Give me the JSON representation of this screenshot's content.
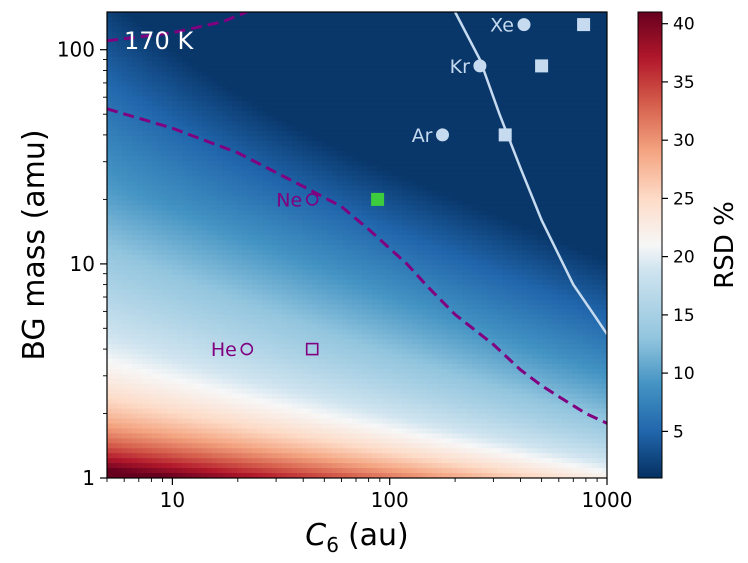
{
  "chart_data": {
    "type": "heatmap",
    "title": "",
    "annotation_text": "170 K",
    "xlabel_base": "C",
    "xlabel_sub": "6",
    "xlabel_unit": "(au)",
    "ylabel": "BG mass (amu)",
    "xscale": "log",
    "yscale": "log",
    "xlim": [
      5,
      1000
    ],
    "ylim": [
      1,
      150
    ],
    "xticks": [
      {
        "value": 10,
        "label": "10"
      },
      {
        "value": 100,
        "label": "100"
      },
      {
        "value": 1000,
        "label": "1000"
      }
    ],
    "yticks": [
      {
        "value": 1,
        "label": "1"
      },
      {
        "value": 10,
        "label": "10"
      },
      {
        "value": 100,
        "label": "100"
      }
    ],
    "colorbar": {
      "label": "RSD %",
      "range": [
        1,
        41
      ],
      "ticks": [
        {
          "value": 5,
          "label": "5"
        },
        {
          "value": 10,
          "label": "10"
        },
        {
          "value": 15,
          "label": "15"
        },
        {
          "value": 20,
          "label": "20"
        },
        {
          "value": 25,
          "label": "25"
        },
        {
          "value": 30,
          "label": "30"
        },
        {
          "value": 35,
          "label": "35"
        },
        {
          "value": 40,
          "label": "40"
        }
      ],
      "colormap": "RdBu_r"
    },
    "contours": [
      {
        "name": "contour-dashed-upper",
        "style": "dashed",
        "color": "#800080",
        "points": [
          [
            5,
            110
          ],
          [
            10,
            120
          ],
          [
            17,
            135
          ],
          [
            22,
            150
          ]
        ]
      },
      {
        "name": "contour-dashed-lower",
        "style": "dashed",
        "color": "#800080",
        "points": [
          [
            5,
            53
          ],
          [
            10,
            43
          ],
          [
            20,
            33
          ],
          [
            40,
            23
          ],
          [
            60,
            18.5
          ],
          [
            80,
            14.5
          ],
          [
            120,
            10
          ],
          [
            150,
            7.8
          ],
          [
            200,
            5.8
          ],
          [
            300,
            4.2
          ],
          [
            400,
            3.2
          ],
          [
            500,
            2.7
          ],
          [
            600,
            2.4
          ],
          [
            800,
            2.0
          ],
          [
            1000,
            1.8
          ]
        ]
      },
      {
        "name": "contour-solid",
        "style": "solid",
        "color": "#c6dbef",
        "points": [
          [
            200,
            150
          ],
          [
            260,
            90
          ],
          [
            320,
            50
          ],
          [
            400,
            28
          ],
          [
            500,
            16
          ],
          [
            700,
            8
          ],
          [
            850,
            6
          ],
          [
            1000,
            4.7
          ]
        ]
      }
    ],
    "points": [
      {
        "label": "He",
        "x": 22,
        "y": 4,
        "marker": "circle",
        "style": "hollow",
        "color": "#800080",
        "label_side": "left"
      },
      {
        "label": "",
        "x": 44,
        "y": 4,
        "marker": "square",
        "style": "hollow",
        "color": "#800080"
      },
      {
        "label": "Ne",
        "x": 44,
        "y": 20,
        "marker": "circle",
        "style": "hollow",
        "color": "#800080",
        "label_side": "left"
      },
      {
        "label": "",
        "x": 88,
        "y": 20,
        "marker": "square",
        "style": "filled",
        "color": "#3dcc3d"
      },
      {
        "label": "Ar",
        "x": 175,
        "y": 40,
        "marker": "circle",
        "style": "filled",
        "color": "#c6dbef",
        "label_side": "left"
      },
      {
        "label": "",
        "x": 340,
        "y": 40,
        "marker": "square",
        "style": "filled",
        "color": "#c6dbef"
      },
      {
        "label": "Kr",
        "x": 260,
        "y": 84,
        "marker": "circle",
        "style": "filled",
        "color": "#c6dbef",
        "label_side": "left"
      },
      {
        "label": "",
        "x": 500,
        "y": 84,
        "marker": "square",
        "style": "filled",
        "color": "#c6dbef"
      },
      {
        "label": "Xe",
        "x": 415,
        "y": 131,
        "marker": "circle",
        "style": "filled",
        "color": "#c6dbef",
        "label_side": "left"
      },
      {
        "label": "",
        "x": 780,
        "y": 131,
        "marker": "square",
        "style": "filled",
        "color": "#c6dbef"
      }
    ]
  }
}
